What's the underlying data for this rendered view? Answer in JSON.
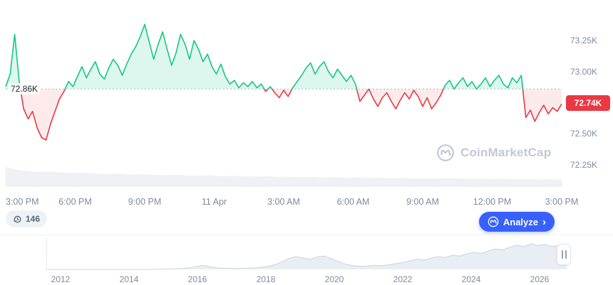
{
  "watermark": {
    "text": "CoinMarketCap"
  },
  "controls": {
    "history_count": "146",
    "analyze_label": "Analyze",
    "analyze_chevron": "›"
  },
  "chart_data": [
    {
      "type": "area",
      "title": "BTC/USD intraday price (24h window)",
      "baseline": 72.86,
      "baseline_label": "72.86K",
      "last_price": 72.74,
      "last_price_label": "72.74K",
      "up_color": "#16c784",
      "down_color": "#ea3943",
      "y_ticks": [
        "73.25K",
        "73.00K",
        "72.50K",
        "72.25K"
      ],
      "y_tick_values": [
        73.25,
        73.0,
        72.5,
        72.25
      ],
      "x_ticks": [
        "3:00 PM",
        "6:00 PM",
        "9:00 PM",
        "11 Apr",
        "3:00 AM",
        "6:00 AM",
        "9:00 AM",
        "12:00 PM",
        "3:00 PM"
      ],
      "prices": [
        72.88,
        72.98,
        73.3,
        72.92,
        72.7,
        72.62,
        72.68,
        72.55,
        72.47,
        72.45,
        72.58,
        72.68,
        72.78,
        72.84,
        72.92,
        72.88,
        72.96,
        73.04,
        72.95,
        73.02,
        73.08,
        72.98,
        72.94,
        73.03,
        73.1,
        73.05,
        72.97,
        73.06,
        73.14,
        73.2,
        73.28,
        73.38,
        73.24,
        73.1,
        73.22,
        73.32,
        73.18,
        73.05,
        73.15,
        73.3,
        73.22,
        73.1,
        73.25,
        73.18,
        73.08,
        73.14,
        73.04,
        72.98,
        73.06,
        72.96,
        72.9,
        72.93,
        72.87,
        72.91,
        72.88,
        72.92,
        72.87,
        72.9,
        72.84,
        72.88,
        72.83,
        72.79,
        72.85,
        72.8,
        72.87,
        72.92,
        72.97,
        73.03,
        73.07,
        72.98,
        73.04,
        73.08,
        73.0,
        72.95,
        73.02,
        72.97,
        72.92,
        72.97,
        72.9,
        72.76,
        72.81,
        72.86,
        72.78,
        72.72,
        72.79,
        72.83,
        72.76,
        72.7,
        72.77,
        72.83,
        72.78,
        72.85,
        72.8,
        72.72,
        72.79,
        72.7,
        72.75,
        72.81,
        72.89,
        72.93,
        72.86,
        72.91,
        72.95,
        72.88,
        72.92,
        72.86,
        72.9,
        72.95,
        72.88,
        72.93,
        72.97,
        72.9,
        72.87,
        72.95,
        72.91,
        72.97,
        72.63,
        72.69,
        72.6,
        72.67,
        72.73,
        72.66,
        72.71,
        72.68,
        72.74
      ],
      "volume_profile": [
        0.95,
        0.8,
        0.75,
        0.7,
        0.72,
        0.68,
        0.65,
        0.66,
        0.62,
        0.6,
        0.62,
        0.58,
        0.6,
        0.57,
        0.55,
        0.57,
        0.54,
        0.52,
        0.55,
        0.5,
        0.52,
        0.5,
        0.48,
        0.5,
        0.47,
        0.48,
        0.45,
        0.47,
        0.44,
        0.45,
        0.43,
        0.44,
        0.42,
        0.43,
        0.41,
        0.42,
        0.4,
        0.41,
        0.4,
        0.39,
        0.4,
        0.38,
        0.39,
        0.37,
        0.38,
        0.36,
        0.37,
        0.35,
        0.36,
        0.35
      ]
    },
    {
      "type": "area",
      "title": "All-time price minimap",
      "years": [
        "2012",
        "2014",
        "2016",
        "2018",
        "2020",
        "2022",
        "2024",
        "2026"
      ],
      "values": [
        0,
        0,
        0,
        0,
        0,
        0,
        0,
        0,
        0,
        0,
        0,
        0,
        0,
        0,
        0,
        0,
        0.01,
        0.01,
        0.02,
        0.03,
        0.05,
        0.1,
        0.14,
        0.09,
        0.05,
        0.04,
        0.03,
        0.03,
        0.04,
        0.05,
        0.07,
        0.1,
        0.16,
        0.26,
        0.38,
        0.45,
        0.4,
        0.35,
        0.44,
        0.47,
        0.38,
        0.28,
        0.18,
        0.13,
        0.11,
        0.12,
        0.14,
        0.13,
        0.16,
        0.2,
        0.24,
        0.3,
        0.36,
        0.33,
        0.4,
        0.45,
        0.42,
        0.5,
        0.47,
        0.55,
        0.6,
        0.56,
        0.64,
        0.72,
        0.68,
        0.78,
        0.85,
        0.8,
        0.9,
        0.84,
        0.88,
        0.8,
        0.86,
        0.82
      ]
    }
  ]
}
